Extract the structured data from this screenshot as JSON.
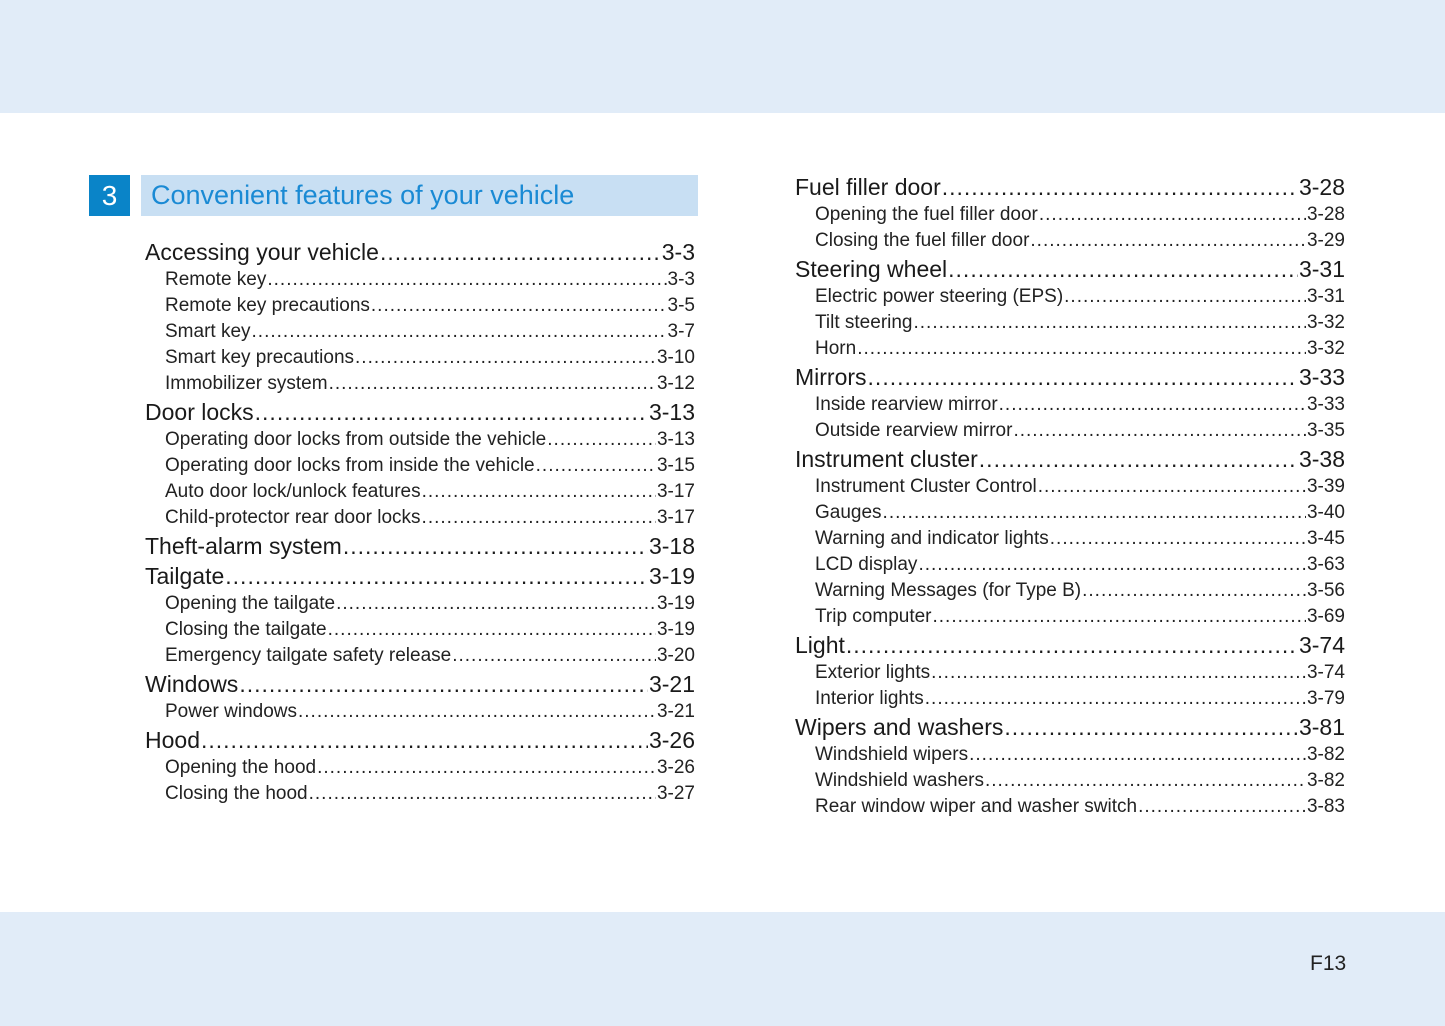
{
  "chapter": {
    "number": "3",
    "title": "Convenient features of your vehicle",
    "accent_color": "#0a84c8"
  },
  "left_column": [
    {
      "level": "main",
      "label": "Accessing your vehicle",
      "page": "3-3"
    },
    {
      "level": "sub",
      "label": "Remote key",
      "page": "3-3"
    },
    {
      "level": "sub",
      "label": "Remote key precautions",
      "page": "3-5"
    },
    {
      "level": "sub",
      "label": "Smart key",
      "page": "3-7"
    },
    {
      "level": "sub",
      "label": "Smart key precautions",
      "page": "3-10"
    },
    {
      "level": "sub",
      "label": "Immobilizer system",
      "page": "3-12"
    },
    {
      "level": "main",
      "label": "Door locks",
      "page": "3-13"
    },
    {
      "level": "sub",
      "label": "Operating door locks from outside the vehicle",
      "page": "3-13"
    },
    {
      "level": "sub",
      "label": "Operating door locks from inside the vehicle",
      "page": "3-15"
    },
    {
      "level": "sub",
      "label": "Auto door lock/unlock features",
      "page": "3-17"
    },
    {
      "level": "sub",
      "label": "Child-protector rear door locks",
      "page": "3-17"
    },
    {
      "level": "main",
      "label": "Theft-alarm system",
      "page": "3-18"
    },
    {
      "level": "main",
      "label": "Tailgate",
      "page": "3-19"
    },
    {
      "level": "sub",
      "label": "Opening the tailgate",
      "page": "3-19"
    },
    {
      "level": "sub",
      "label": "Closing the tailgate",
      "page": "3-19"
    },
    {
      "level": "sub",
      "label": "Emergency tailgate safety release",
      "page": "3-20"
    },
    {
      "level": "main",
      "label": "Windows",
      "page": "3-21"
    },
    {
      "level": "sub",
      "label": "Power windows",
      "page": "3-21"
    },
    {
      "level": "main",
      "label": "Hood",
      "page": "3-26"
    },
    {
      "level": "sub",
      "label": "Opening the hood",
      "page": "3-26"
    },
    {
      "level": "sub",
      "label": "Closing the hood",
      "page": "3-27"
    }
  ],
  "right_column": [
    {
      "level": "main",
      "label": "Fuel filler door",
      "page": "3-28"
    },
    {
      "level": "sub",
      "label": "Opening the fuel filler door",
      "page": "3-28"
    },
    {
      "level": "sub",
      "label": "Closing the fuel filler door",
      "page": "3-29"
    },
    {
      "level": "main",
      "label": "Steering wheel",
      "page": "3-31"
    },
    {
      "level": "sub",
      "label": "Electric power steering (EPS)",
      "page": "3-31"
    },
    {
      "level": "sub",
      "label": "Tilt steering",
      "page": "3-32"
    },
    {
      "level": "sub",
      "label": "Horn",
      "page": "3-32"
    },
    {
      "level": "main",
      "label": "Mirrors",
      "page": "3-33"
    },
    {
      "level": "sub",
      "label": "Inside rearview mirror",
      "page": "3-33"
    },
    {
      "level": "sub",
      "label": "Outside rearview mirror",
      "page": "3-35"
    },
    {
      "level": "main",
      "label": "Instrument cluster",
      "page": "3-38"
    },
    {
      "level": "sub",
      "label": "Instrument Cluster Control",
      "page": "3-39"
    },
    {
      "level": "sub",
      "label": "Gauges",
      "page": "3-40"
    },
    {
      "level": "sub",
      "label": "Warning and indicator lights",
      "page": "3-45"
    },
    {
      "level": "sub",
      "label": "LCD display",
      "page": "3-63"
    },
    {
      "level": "sub",
      "label": "Warning Messages (for Type B)",
      "page": "3-56"
    },
    {
      "level": "sub",
      "label": "Trip computer",
      "page": "3-69"
    },
    {
      "level": "main",
      "label": "Light",
      "page": "3-74"
    },
    {
      "level": "sub",
      "label": "Exterior lights",
      "page": "3-74"
    },
    {
      "level": "sub",
      "label": "Interior lights",
      "page": "3-79"
    },
    {
      "level": "main",
      "label": "Wipers and washers",
      "page": "3-81"
    },
    {
      "level": "sub",
      "label": "Windshield wipers",
      "page": "3-82"
    },
    {
      "level": "sub",
      "label": "Windshield washers",
      "page": "3-82"
    },
    {
      "level": "sub",
      "label": "Rear window wiper and washer switch",
      "page": "3-83"
    }
  ],
  "footer": {
    "page_number": "F13"
  }
}
